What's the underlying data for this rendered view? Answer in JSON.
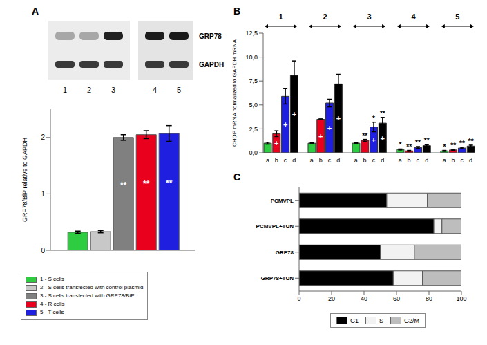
{
  "chart_data": [
    {
      "type": "bar",
      "title": "A",
      "ylabel": "GRP78/BiP relative to GAPDH",
      "categories": [
        null
      ],
      "series": [
        {
          "name": "1 - S cells",
          "color": "#2ecc40",
          "values": [
            0.32
          ],
          "errors": [
            0.02
          ]
        },
        {
          "name": "2 - S cells transfected with control plasmid",
          "color": "#c8c8c8",
          "values": [
            0.33
          ],
          "errors": [
            0.02
          ]
        },
        {
          "name": "3 - S cells transfected with GRP78/BiP",
          "color": "#808080",
          "values": [
            2.0
          ],
          "errors": [
            0.05
          ],
          "significance": [
            "**"
          ]
        },
        {
          "name": "4 - R cells",
          "color": "#e8001c",
          "values": [
            2.05
          ],
          "errors": [
            0.07
          ],
          "significance": [
            "**"
          ]
        },
        {
          "name": "5 - T cells",
          "color": "#1f1fe0",
          "values": [
            2.07
          ],
          "errors": [
            0.14
          ],
          "significance": [
            "**"
          ]
        }
      ],
      "ylim": [
        0,
        2.5
      ],
      "yticks": [
        0,
        1,
        2
      ],
      "tick_labels": "y",
      "legend": "bottom"
    },
    {
      "type": "bar",
      "title": "B",
      "ylabel": "CHOP mRNA normalized to GAPDH mRNA",
      "categories": [
        "a",
        "b",
        "c",
        "d"
      ],
      "colors": [
        "#2ecc40",
        "#e8001c",
        "#1f1fe0",
        "#000000"
      ],
      "groups": [
        {
          "name": "1",
          "values": [
            1.0,
            2.0,
            5.9,
            8.1
          ],
          "errors": [
            0.1,
            0.3,
            0.8,
            1.5
          ],
          "significance": [
            null,
            null,
            null,
            null
          ],
          "symbols": [
            null,
            "+",
            "+",
            "+"
          ]
        },
        {
          "name": "2",
          "values": [
            1.0,
            3.5,
            5.2,
            7.2
          ],
          "errors": [
            0.05,
            0.05,
            0.4,
            1.0
          ],
          "significance": [
            null,
            null,
            null,
            null
          ],
          "symbols": [
            null,
            "+",
            "+",
            "+"
          ]
        },
        {
          "name": "3",
          "values": [
            1.0,
            1.3,
            2.7,
            3.1
          ],
          "errors": [
            0.05,
            0.1,
            0.5,
            0.6
          ],
          "significance": [
            null,
            "**",
            "*",
            "**"
          ],
          "symbols": [
            null,
            null,
            "+",
            "+"
          ]
        },
        {
          "name": "4",
          "values": [
            0.35,
            0.2,
            0.55,
            0.75
          ],
          "errors": [
            0.05,
            0.05,
            0.1,
            0.1
          ],
          "significance": [
            "*",
            "**",
            "**",
            "**"
          ],
          "symbols": [
            null,
            null,
            null,
            null
          ]
        },
        {
          "name": "5",
          "values": [
            0.2,
            0.3,
            0.5,
            0.7
          ],
          "errors": [
            0.05,
            0.05,
            0.08,
            0.1
          ],
          "significance": [
            "*",
            "**",
            "**",
            "**"
          ],
          "symbols": [
            null,
            null,
            null,
            null
          ]
        }
      ],
      "ylim": [
        0,
        12.5
      ],
      "yticks": [
        {
          "value": 0,
          "label": "0,0"
        },
        {
          "value": 2.5,
          "label": "2,5"
        },
        {
          "value": 5,
          "label": "5,0"
        },
        {
          "value": 7.5,
          "label": "7,5"
        },
        {
          "value": 10,
          "label": "10,0"
        },
        {
          "value": 12.5,
          "label": "12,5"
        }
      ]
    },
    {
      "type": "bar",
      "title": "C",
      "orientation": "horizontal",
      "stacked": true,
      "categories": [
        "PCMVPL",
        "PCMVPL+TUN",
        "GRP78",
        "GRP78+TUN"
      ],
      "series": [
        {
          "name": "G1",
          "color": "#000000",
          "values": [
            54,
            83,
            50,
            58
          ]
        },
        {
          "name": "S",
          "color": "#f2f2f2",
          "values": [
            25,
            5,
            21,
            18
          ]
        },
        {
          "name": "G2/M",
          "color": "#bdbdbd",
          "values": [
            21,
            12,
            29,
            24
          ]
        }
      ],
      "xlim": [
        0,
        100
      ],
      "xticks": [
        0,
        20,
        40,
        60,
        80,
        100
      ],
      "legend": "bottom"
    }
  ],
  "blot": {
    "proteins": [
      "GRP78",
      "GAPDH"
    ],
    "lanes": [
      "1",
      "2",
      "3",
      "4",
      "5"
    ]
  }
}
